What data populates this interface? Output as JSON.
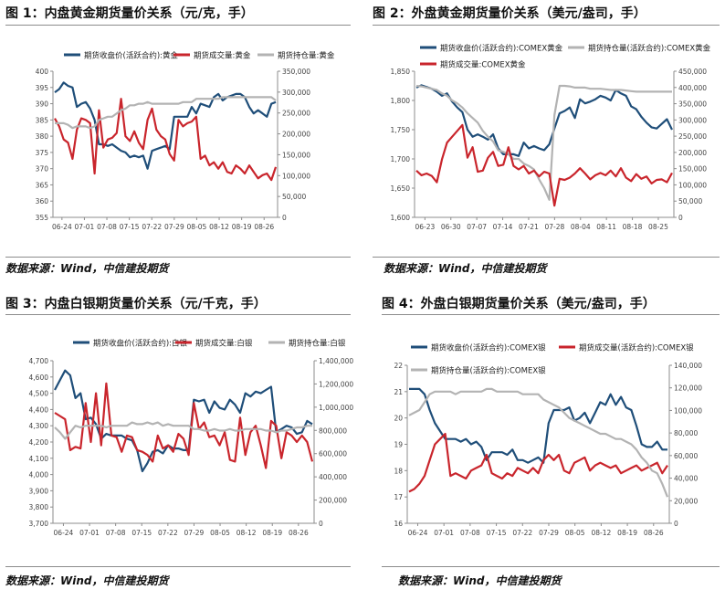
{
  "panels": [
    {
      "title": "图 1：内盘黄金期货量价关系（元/克，手）",
      "source": "数据来源：Wind，中信建投期货"
    },
    {
      "title": "图 2：外盘黄金期货量价关系（美元/盎司，手）",
      "source": "数据来源：Wind，中信建投期货"
    },
    {
      "title": "图 3：内盘白银期货量价关系（元/千克，手）",
      "source": "数据来源：Wind，中信建投期货"
    },
    {
      "title": "图 4：外盘白银期货量价关系（美元/盎司，手）",
      "source": "数据来源：Wind，中信建投期货"
    }
  ],
  "colors": {
    "price": "#1f4e79",
    "volume": "#c9252c",
    "oi": "#b3b3b3",
    "tick": "#444444"
  },
  "chart_data": [
    {
      "type": "line",
      "title": "",
      "legend": [
        "期货收盘价(活跃合约):黄金",
        "期货成交量:黄金",
        "期货持仓量:黄金"
      ],
      "x_ticks": [
        "06-24",
        "07-01",
        "07-08",
        "07-15",
        "07-22",
        "07-29",
        "08-05",
        "08-12",
        "08-19",
        "08-26"
      ],
      "y_left": {
        "min": 355,
        "max": 400,
        "step": 5,
        "labels": [
          "355",
          "360",
          "365",
          "370",
          "375",
          "380",
          "385",
          "390",
          "395",
          "400"
        ]
      },
      "y_right": {
        "min": 0,
        "max": 350000,
        "step": 50000,
        "labels": [
          "0",
          "50,000",
          "100,000",
          "150,000",
          "200,000",
          "250,000",
          "300,000",
          "350,000"
        ]
      },
      "series": [
        {
          "name": "期货收盘价(活跃合约):黄金",
          "axis": "left",
          "values": [
            393.5,
            394.5,
            396.5,
            395.5,
            395.0,
            389.0,
            390.0,
            390.5,
            388.5,
            385.0,
            377.5,
            377.5,
            377.0,
            377.5,
            376.5,
            375.5,
            375.0,
            373.5,
            374.0,
            373.5,
            374.0,
            370.0,
            375.5,
            376.0,
            376.5,
            377.0,
            376.0,
            386.0,
            386.0,
            386.0,
            386.0,
            389.0,
            387.0,
            390.0,
            389.5,
            389.0,
            392.0,
            393.0,
            391.0,
            392.0,
            392.5,
            393.0,
            393.0,
            392.0,
            389.0,
            387.0,
            388.0,
            387.0,
            386.0,
            390.0,
            390.5
          ]
        },
        {
          "name": "期货成交量:黄金",
          "axis": "left",
          "values": [
            385.5,
            383.0,
            379.0,
            378.0,
            373.0,
            382.0,
            385.5,
            385.0,
            384.0,
            368.5,
            388.0,
            376.5,
            379.0,
            379.5,
            381.0,
            391.5,
            380.0,
            378.5,
            381.5,
            378.0,
            376.0,
            385.0,
            388.5,
            382.0,
            380.0,
            379.0,
            374.5,
            372.5,
            385.0,
            383.0,
            384.0,
            384.5,
            386.0,
            373.0,
            374.0,
            371.0,
            372.0,
            370.0,
            372.0,
            369.0,
            368.5,
            371.0,
            370.0,
            368.5,
            371.0,
            369.0,
            367.0,
            368.0,
            368.5,
            366.5,
            370.5
          ]
        },
        {
          "name": "期货持仓量:黄金",
          "axis": "left",
          "values": [
            384.0,
            384.0,
            384.0,
            383.5,
            382.5,
            383.0,
            383.0,
            383.0,
            382.5,
            383.0,
            385.0,
            385.5,
            386.0,
            386.0,
            387.0,
            388.0,
            388.5,
            389.5,
            389.5,
            390.0,
            390.0,
            390.5,
            390.0,
            390.0,
            390.0,
            390.0,
            390.0,
            390.0,
            390.0,
            390.5,
            390.5,
            390.5,
            391.5,
            391.5,
            391.5,
            391.5,
            391.5,
            391.5,
            392.0,
            392.0,
            392.0,
            392.0,
            392.0,
            392.0,
            392.0,
            392.0,
            392.0,
            392.0,
            392.0,
            392.0,
            391.0
          ]
        }
      ]
    },
    {
      "type": "line",
      "title": "",
      "legend": [
        "期货收盘价(活跃合约):COMEX黄金",
        "期货持仓量(活跃合约):COMEX黄金",
        "期货成交量:COMEX黄金"
      ],
      "x_ticks": [
        "06-23",
        "06-30",
        "07-07",
        "07-14",
        "07-21",
        "07-28",
        "08-04",
        "08-11",
        "08-18",
        "08-25"
      ],
      "y_left": {
        "min": 1600,
        "max": 1850,
        "step": 50,
        "labels": [
          "1,600",
          "1,650",
          "1,700",
          "1,750",
          "1,800",
          "1,850"
        ]
      },
      "y_right": {
        "min": 0,
        "max": 450000,
        "step": 50000,
        "labels": [
          "0",
          "50,000",
          "100,000",
          "150,000",
          "200,000",
          "250,000",
          "300,000",
          "350,000",
          "400,000",
          "450,000"
        ]
      },
      "series": [
        {
          "name": "期货收盘价(活跃合约):COMEX黄金",
          "axis": "left",
          "values": [
            1822,
            1826,
            1823,
            1820,
            1815,
            1808,
            1812,
            1798,
            1788,
            1780,
            1750,
            1738,
            1742,
            1738,
            1733,
            1742,
            1718,
            1708,
            1708,
            1708,
            1705,
            1728,
            1718,
            1722,
            1718,
            1715,
            1725,
            1752,
            1778,
            1782,
            1788,
            1770,
            1802,
            1795,
            1798,
            1802,
            1808,
            1805,
            1800,
            1818,
            1812,
            1808,
            1790,
            1785,
            1772,
            1762,
            1754,
            1752,
            1760,
            1768,
            1750
          ]
        },
        {
          "name": "期货持仓量(活跃合约):COMEX黄金",
          "axis": "left",
          "values": [
            1825,
            1824,
            1822,
            1820,
            1818,
            1812,
            1808,
            1800,
            1795,
            1788,
            1778,
            1770,
            1762,
            1748,
            1738,
            1730,
            1715,
            1712,
            1708,
            1700,
            1700,
            1692,
            1688,
            1682,
            1665,
            1650,
            1630,
            1775,
            1825,
            1825,
            1824,
            1822,
            1822,
            1822,
            1820,
            1820,
            1820,
            1819,
            1818,
            1818,
            1818,
            1817,
            1816,
            1815,
            1815,
            1815,
            1815,
            1815,
            1815,
            1815,
            1815
          ]
        },
        {
          "name": "期货成交量:COMEX黄金",
          "axis": "left",
          "values": [
            1680,
            1672,
            1675,
            1671,
            1660,
            1699,
            1728,
            1738,
            1748,
            1758,
            1702,
            1720,
            1678,
            1680,
            1702,
            1712,
            1688,
            1690,
            1720,
            1688,
            1682,
            1688,
            1675,
            1680,
            1670,
            1678,
            1675,
            1620,
            1666,
            1664,
            1668,
            1675,
            1684,
            1675,
            1665,
            1672,
            1676,
            1672,
            1680,
            1670,
            1684,
            1668,
            1662,
            1674,
            1666,
            1670,
            1658,
            1664,
            1665,
            1660,
            1676
          ]
        }
      ]
    },
    {
      "type": "line",
      "title": "",
      "legend": [
        "期货收盘价(活跃合约):白银",
        "期货成交量:白银",
        "期货持仓量:白银"
      ],
      "x_ticks": [
        "06-24",
        "07-01",
        "07-08",
        "07-15",
        "07-22",
        "07-29",
        "08-05",
        "08-12",
        "08-19",
        "08-26"
      ],
      "y_left": {
        "min": 3700,
        "max": 4700,
        "step": 100,
        "labels": [
          "3,700",
          "3,800",
          "3,900",
          "4,000",
          "4,100",
          "4,200",
          "4,300",
          "4,400",
          "4,500",
          "4,600",
          "4,700"
        ]
      },
      "y_right": {
        "min": 0,
        "max": 1400000,
        "step": 200000,
        "labels": [
          "0",
          "200,000",
          "400,000",
          "600,000",
          "800,000",
          "1,000,000",
          "1,200,000",
          "1,400,000"
        ]
      },
      "series": [
        {
          "name": "期货收盘价(活跃合约):白银",
          "axis": "left",
          "values": [
            4520,
            4580,
            4640,
            4610,
            4470,
            4500,
            4340,
            4350,
            4310,
            4220,
            4250,
            4240,
            4240,
            4240,
            4220,
            4210,
            4150,
            4020,
            4070,
            4140,
            4150,
            4130,
            4180,
            4160,
            4160,
            4150,
            4150,
            4460,
            4450,
            4460,
            4380,
            4450,
            4410,
            4400,
            4460,
            4430,
            4380,
            4500,
            4480,
            4510,
            4500,
            4520,
            4540,
            4260,
            4280,
            4300,
            4290,
            4250,
            4260,
            4330,
            4310
          ]
        },
        {
          "name": "期货成交量:白银",
          "axis": "left",
          "values": [
            4380,
            4360,
            4340,
            4150,
            4170,
            4160,
            4440,
            4200,
            4500,
            4180,
            4560,
            4240,
            4230,
            4140,
            4240,
            4230,
            4150,
            4140,
            4120,
            4080,
            4240,
            4160,
            4180,
            4140,
            4250,
            4220,
            4120,
            4440,
            4280,
            4320,
            4230,
            4240,
            4180,
            4260,
            4090,
            4080,
            4350,
            4120,
            4260,
            4300,
            4180,
            4040,
            4330,
            4300,
            4100,
            4260,
            4240,
            4200,
            4240,
            4200,
            4080
          ]
        },
        {
          "name": "期货持仓量:白银",
          "axis": "left",
          "values": [
            4290,
            4260,
            4220,
            4260,
            4300,
            4290,
            4300,
            4300,
            4300,
            4300,
            4290,
            4300,
            4300,
            4300,
            4300,
            4320,
            4310,
            4310,
            4320,
            4310,
            4320,
            4300,
            4310,
            4300,
            4300,
            4300,
            4300,
            4280,
            4280,
            4270,
            4270,
            4280,
            4270,
            4270,
            4280,
            4270,
            4270,
            4280,
            4280,
            4280,
            4280,
            4270,
            4270,
            4260,
            4270,
            4270,
            4280,
            4290,
            4290,
            4300,
            4300
          ]
        }
      ]
    },
    {
      "type": "line",
      "title": "",
      "legend": [
        "期货收盘价(活跃合约):COMEX银",
        "期货成交量(活跃合约):COMEX银",
        "期货持仓量(活跃合约):COMEX银"
      ],
      "x_ticks": [
        "06-24",
        "07-01",
        "07-08",
        "07-15",
        "07-22",
        "07-29",
        "08-05",
        "08-12",
        "08-19",
        "08-26"
      ],
      "y_left": {
        "min": 16,
        "max": 22,
        "step": 1,
        "labels": [
          "16",
          "17",
          "18",
          "19",
          "20",
          "21",
          "22"
        ]
      },
      "y_right": {
        "min": 0,
        "max": 140000,
        "step": 20000,
        "labels": [
          "0",
          "20,000",
          "40,000",
          "60,000",
          "80,000",
          "100,000",
          "120,000",
          "140,000"
        ]
      },
      "series": [
        {
          "name": "期货收盘价(活跃合约):COMEX银",
          "axis": "left",
          "values": [
            21.1,
            21.1,
            21.1,
            20.9,
            20.3,
            19.8,
            19.5,
            19.2,
            19.2,
            19.2,
            19.1,
            19.2,
            19.0,
            19.1,
            18.9,
            18.4,
            18.7,
            18.7,
            18.7,
            18.6,
            18.8,
            18.4,
            18.4,
            18.3,
            18.4,
            18.5,
            18.3,
            19.8,
            20.3,
            20.3,
            20.3,
            20.4,
            19.9,
            20.0,
            20.2,
            19.8,
            20.2,
            20.6,
            20.5,
            20.9,
            20.5,
            20.8,
            20.4,
            20.3,
            19.7,
            19.0,
            18.9,
            18.9,
            19.1,
            18.8,
            18.8
          ]
        },
        {
          "name": "期货成交量(活跃合约):COMEX银",
          "axis": "left",
          "values": [
            17.2,
            17.3,
            17.5,
            17.8,
            18.4,
            19.0,
            19.2,
            19.4,
            17.8,
            17.9,
            17.8,
            17.7,
            18.0,
            18.1,
            18.2,
            18.6,
            17.9,
            17.8,
            17.7,
            17.9,
            17.8,
            18.1,
            18.0,
            17.9,
            18.1,
            17.9,
            18.4,
            18.6,
            18.4,
            18.6,
            18.0,
            17.9,
            18.3,
            18.4,
            18.5,
            18.0,
            18.2,
            18.3,
            18.2,
            18.1,
            18.2,
            17.9,
            18.0,
            18.1,
            18.2,
            18.0,
            18.1,
            18.2,
            18.3,
            17.9,
            18.2
          ]
        },
        {
          "name": "期货持仓量(活跃合约):COMEX银",
          "axis": "left",
          "values": [
            20.1,
            20.2,
            20.3,
            20.6,
            20.9,
            21.0,
            21.0,
            21.0,
            21.0,
            20.9,
            21.0,
            21.0,
            21.0,
            21.0,
            21.0,
            21.1,
            21.1,
            21.0,
            21.0,
            21.0,
            21.0,
            21.0,
            20.9,
            20.9,
            20.9,
            20.9,
            20.7,
            20.6,
            20.5,
            20.4,
            20.2,
            20.0,
            19.9,
            19.8,
            19.7,
            19.6,
            19.5,
            19.4,
            19.4,
            19.3,
            19.2,
            19.2,
            19.1,
            19.0,
            18.8,
            18.5,
            18.3,
            18.0,
            17.9,
            17.5,
            17.0
          ]
        }
      ]
    }
  ]
}
